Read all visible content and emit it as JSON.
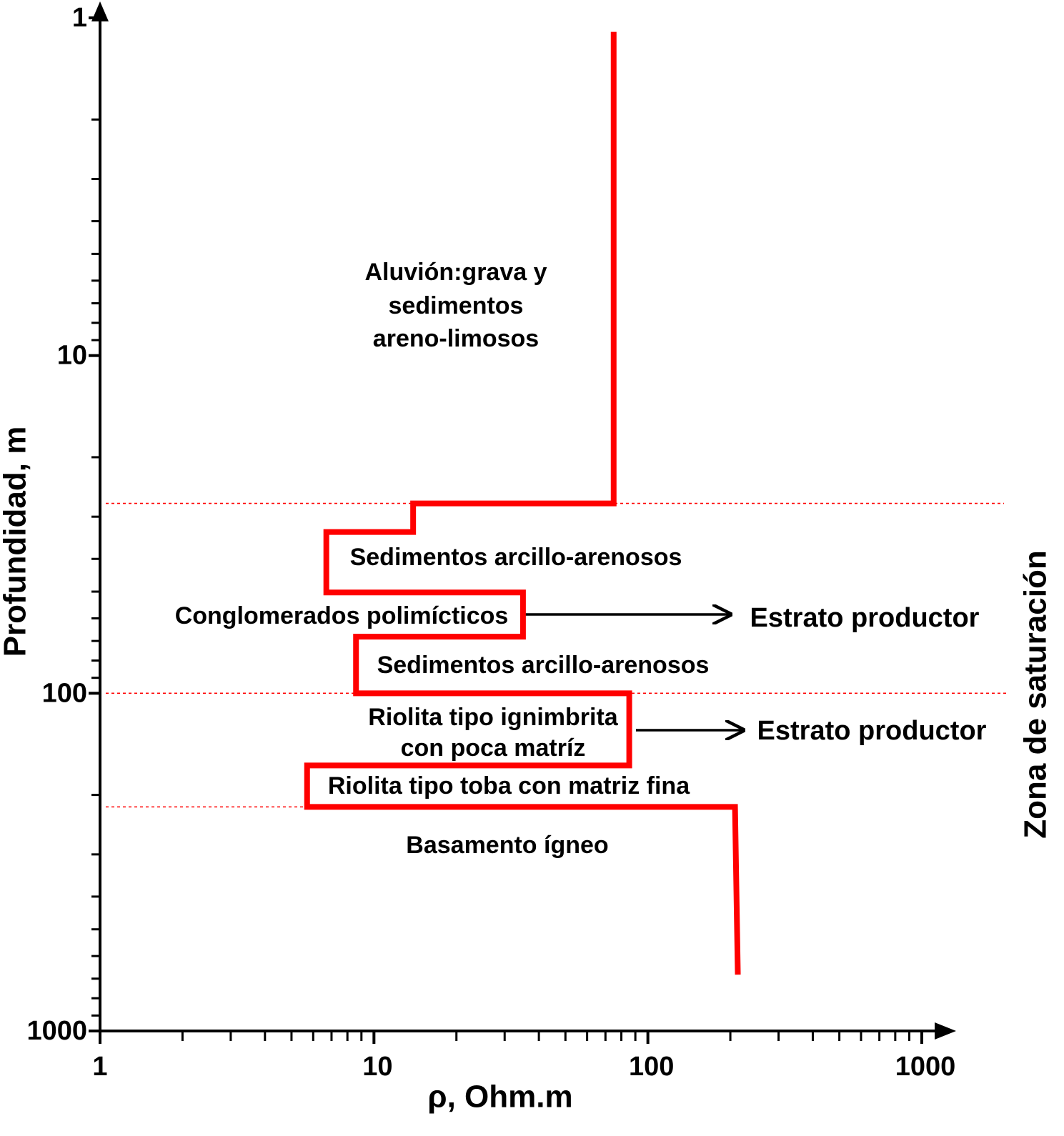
{
  "chart_data": {
    "type": "line",
    "x_label": "ρ, Ohm.m",
    "y_label": "Profundidad, m",
    "side_label": "Zona de saturación",
    "x_log": true,
    "y_log": true,
    "y_inverted": true,
    "xlim": [
      1,
      1000
    ],
    "ylim": [
      1,
      1000
    ],
    "xticks": [
      1,
      10,
      100,
      1000
    ],
    "yticks": [
      1,
      10,
      100,
      1000
    ],
    "xminorticks": [
      2,
      3,
      4,
      5,
      6,
      7,
      8,
      9,
      20,
      30,
      40,
      50,
      60,
      70,
      80,
      90,
      200,
      300,
      400,
      500,
      600,
      700,
      800,
      900
    ],
    "yminorticks": [
      2,
      3,
      4,
      5,
      6,
      7,
      8,
      9,
      20,
      30,
      40,
      50,
      60,
      70,
      80,
      90,
      200,
      300,
      400,
      500,
      600,
      700,
      800,
      900
    ],
    "series": [
      {
        "color": "#ff0000",
        "x": [
          75,
          75,
          13.9,
          13.9,
          6.7,
          6.7,
          35,
          35,
          8.6,
          8.6,
          85.5,
          85.5,
          5.7,
          5.7,
          208,
          213
        ],
        "values": [
          1.1,
          27.4,
          27.4,
          33.3,
          33.3,
          50.3,
          50.3,
          68,
          68,
          100,
          100,
          163.6,
          163.6,
          217,
          217,
          681
        ]
      }
    ],
    "boundaries": [
      27.4,
      100,
      217
    ],
    "annotations": [
      "Aluvión:grava y",
      "sedimentos",
      "areno-limosos",
      "Sedimentos arcillo-arenosos",
      "Conglomerados polimícticos",
      "Estrato productor",
      "Sedimentos arcillo-arenosos",
      "Riolita tipo ignimbrita",
      "con poca matríz",
      "Estrato productor",
      "Riolita tipo toba con matriz fina",
      "Basamento ígneo"
    ]
  }
}
